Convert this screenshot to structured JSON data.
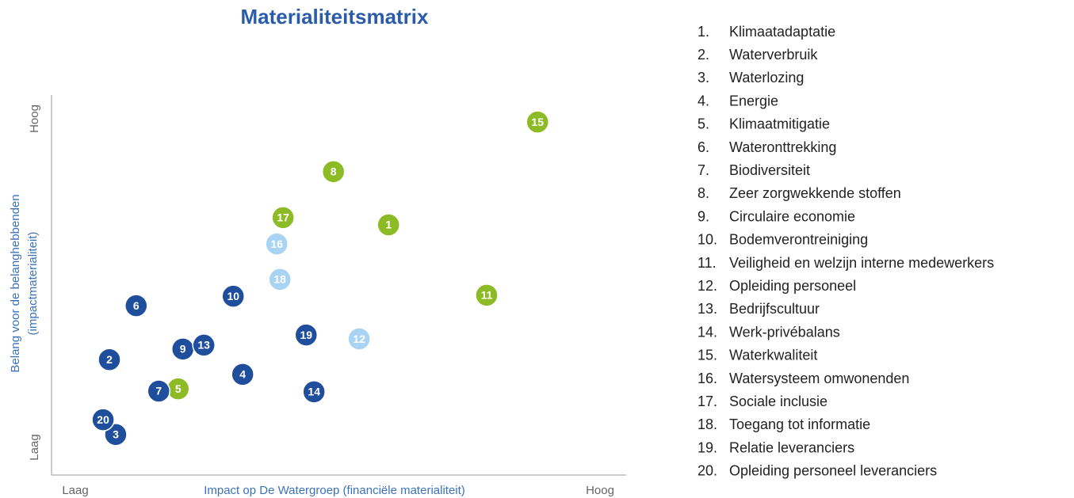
{
  "chart_data": {
    "type": "scatter",
    "title": "Materialiteitsmatrix",
    "x_label": "Impact op De Watergroep (financiële materialiteit)",
    "y_label": [
      "Belang voor de belanghebbenden",
      "(impactmaterialiteit)"
    ],
    "xlim": [
      0,
      100
    ],
    "ylim": [
      0,
      100
    ],
    "xticks": [
      {
        "value": 0,
        "label": "Laag"
      },
      {
        "value": 100,
        "label": "Hoog"
      }
    ],
    "yticks": [
      {
        "value": 0,
        "label": "Laag"
      },
      {
        "value": 100,
        "label": "Hoog"
      }
    ],
    "points": [
      {
        "label": "1",
        "x": 59.7,
        "y": 67.7,
        "color": "#8dbb25"
      },
      {
        "label": "2",
        "x": 6.5,
        "y": 26.7,
        "color": "#1f4e9c"
      },
      {
        "label": "3",
        "x": 7.7,
        "y": 3.9,
        "color": "#1f4e9c"
      },
      {
        "label": "4",
        "x": 31.9,
        "y": 22.2,
        "color": "#1f4e9c"
      },
      {
        "label": "5",
        "x": 19.6,
        "y": 17.8,
        "color": "#8dbb25"
      },
      {
        "label": "6",
        "x": 11.6,
        "y": 43.1,
        "color": "#1f4e9c"
      },
      {
        "label": "7",
        "x": 15.9,
        "y": 17.1,
        "color": "#1f4e9c"
      },
      {
        "label": "8",
        "x": 49.2,
        "y": 83.9,
        "color": "#8dbb25"
      },
      {
        "label": "9",
        "x": 20.5,
        "y": 29.9,
        "color": "#1f4e9c"
      },
      {
        "label": "10",
        "x": 30.1,
        "y": 46.0,
        "color": "#1f4e9c"
      },
      {
        "label": "11",
        "x": 78.4,
        "y": 46.3,
        "color": "#8dbb25"
      },
      {
        "label": "12",
        "x": 54.1,
        "y": 33.0,
        "color": "#a9d3f2"
      },
      {
        "label": "13",
        "x": 24.5,
        "y": 31.1,
        "color": "#1f4e9c"
      },
      {
        "label": "14",
        "x": 45.5,
        "y": 16.9,
        "color": "#1f4e9c"
      },
      {
        "label": "15",
        "x": 88.1,
        "y": 99.0,
        "color": "#8dbb25"
      },
      {
        "label": "16",
        "x": 38.4,
        "y": 61.9,
        "color": "#a9d3f2"
      },
      {
        "label": "17",
        "x": 39.6,
        "y": 69.9,
        "color": "#8dbb25"
      },
      {
        "label": "18",
        "x": 39.0,
        "y": 51.1,
        "color": "#a9d3f2"
      },
      {
        "label": "19",
        "x": 44.0,
        "y": 34.2,
        "color": "#1f4e9c"
      },
      {
        "label": "20",
        "x": 5.3,
        "y": 8.4,
        "color": "#1f4e9c"
      }
    ],
    "list": [
      {
        "number": "1.",
        "text": "Klimaatadaptatie"
      },
      {
        "number": "2.",
        "text": "Waterverbruik"
      },
      {
        "number": "3.",
        "text": "Waterlozing"
      },
      {
        "number": "4.",
        "text": "Energie"
      },
      {
        "number": "5.",
        "text": "Klimaatmitigatie"
      },
      {
        "number": "6.",
        "text": "Wateronttrekking"
      },
      {
        "number": "7.",
        "text": "Biodiversiteit"
      },
      {
        "number": "8.",
        "text": "Zeer zorgwekkende stoffen"
      },
      {
        "number": "9.",
        "text": "Circulaire economie"
      },
      {
        "number": "10.",
        "text": "Bodemverontreiniging"
      },
      {
        "number": "11.",
        "text": "Veiligheid en welzijn interne medewerkers"
      },
      {
        "number": "12.",
        "text": "Opleiding personeel"
      },
      {
        "number": "13.",
        "text": "Bedrijfscultuur"
      },
      {
        "number": "14.",
        "text": "Werk-privébalans"
      },
      {
        "number": "15.",
        "text": "Waterkwaliteit"
      },
      {
        "number": "16.",
        "text": "Watersysteem omwonenden"
      },
      {
        "number": "17.",
        "text": "Sociale inclusie"
      },
      {
        "number": "18.",
        "text": "Toegang tot informatie"
      },
      {
        "number": "19.",
        "text": "Relatie leveranciers"
      },
      {
        "number": "20.",
        "text": "Opleiding personeel leveranciers"
      }
    ]
  }
}
